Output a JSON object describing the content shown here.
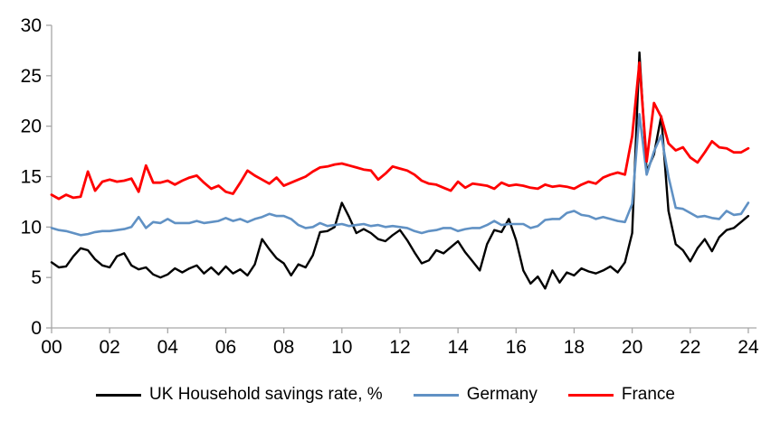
{
  "chart_data": {
    "type": "line",
    "title": "",
    "frequency": "quarterly",
    "x_start_year": 2000,
    "x_step_years": 0.25,
    "x_axis": {
      "min_year": 2000,
      "max_year": 2024,
      "ticks": [
        {
          "year": 2000,
          "label": "00"
        },
        {
          "year": 2002,
          "label": "02"
        },
        {
          "year": 2004,
          "label": "04"
        },
        {
          "year": 2006,
          "label": "06"
        },
        {
          "year": 2008,
          "label": "08"
        },
        {
          "year": 2010,
          "label": "10"
        },
        {
          "year": 2012,
          "label": "12"
        },
        {
          "year": 2014,
          "label": "14"
        },
        {
          "year": 2016,
          "label": "16"
        },
        {
          "year": 2018,
          "label": "18"
        },
        {
          "year": 2020,
          "label": "20"
        },
        {
          "year": 2022,
          "label": "22"
        },
        {
          "year": 2024,
          "label": "24"
        }
      ]
    },
    "y_axis": {
      "min": 0,
      "max": 30,
      "ticks": [
        0,
        5,
        10,
        15,
        20,
        25,
        30
      ]
    },
    "grid": "off",
    "legend_position": "bottom",
    "colors": {
      "axis": "#A6A6A6",
      "labels": "#000000",
      "background": "#FFFFFF"
    },
    "series": [
      {
        "id": "uk",
        "name": "UK Household savings rate, %",
        "color": "#000000",
        "values": [
          6.5,
          6.0,
          6.1,
          7.1,
          7.9,
          7.7,
          6.8,
          6.2,
          6.0,
          7.1,
          7.4,
          6.2,
          5.8,
          6.0,
          5.3,
          5.0,
          5.3,
          5.9,
          5.5,
          5.9,
          6.2,
          5.4,
          6.0,
          5.3,
          6.1,
          5.4,
          5.8,
          5.2,
          6.3,
          8.8,
          7.8,
          6.9,
          6.4,
          5.2,
          6.3,
          6.0,
          7.2,
          9.5,
          9.6,
          10.0,
          12.4,
          11.0,
          9.4,
          9.8,
          9.4,
          8.8,
          8.6,
          9.2,
          9.7,
          8.7,
          7.5,
          6.4,
          6.7,
          7.7,
          7.4,
          8.0,
          8.6,
          7.5,
          6.6,
          5.7,
          8.3,
          9.7,
          9.5,
          10.8,
          8.7,
          5.7,
          4.4,
          5.1,
          3.9,
          5.7,
          4.5,
          5.5,
          5.2,
          5.9,
          5.6,
          5.4,
          5.7,
          6.1,
          5.5,
          6.5,
          9.4,
          27.3,
          15.5,
          17.2,
          21.0,
          11.6,
          8.3,
          7.7,
          6.6,
          7.9,
          8.8,
          7.6,
          9.0,
          9.7,
          9.9,
          10.5,
          11.1
        ]
      },
      {
        "id": "germany",
        "name": "Germany",
        "color": "#6091C4",
        "values": [
          9.9,
          9.7,
          9.6,
          9.4,
          9.2,
          9.3,
          9.5,
          9.6,
          9.6,
          9.7,
          9.8,
          10.0,
          11.0,
          9.9,
          10.5,
          10.4,
          10.8,
          10.4,
          10.4,
          10.4,
          10.6,
          10.4,
          10.5,
          10.6,
          10.9,
          10.6,
          10.8,
          10.5,
          10.8,
          11.0,
          11.3,
          11.1,
          11.1,
          10.8,
          10.2,
          9.9,
          10.0,
          10.4,
          10.1,
          10.2,
          10.3,
          10.1,
          10.2,
          10.3,
          10.1,
          10.2,
          10.0,
          10.1,
          10.0,
          9.9,
          9.6,
          9.4,
          9.6,
          9.7,
          9.9,
          9.9,
          9.6,
          9.8,
          9.9,
          9.9,
          10.2,
          10.6,
          10.2,
          10.3,
          10.3,
          10.3,
          9.9,
          10.1,
          10.7,
          10.8,
          10.8,
          11.4,
          11.6,
          11.2,
          11.1,
          10.8,
          11.0,
          10.8,
          10.6,
          10.5,
          12.3,
          21.2,
          15.2,
          17.5,
          19.1,
          15.0,
          11.9,
          11.8,
          11.4,
          11.0,
          11.1,
          10.9,
          10.8,
          11.6,
          11.2,
          11.3,
          12.4
        ]
      },
      {
        "id": "france",
        "name": "France",
        "color": "#FF0000",
        "values": [
          13.2,
          12.8,
          13.2,
          12.9,
          13.0,
          15.5,
          13.6,
          14.5,
          14.7,
          14.5,
          14.6,
          14.8,
          13.5,
          16.1,
          14.4,
          14.4,
          14.6,
          14.2,
          14.6,
          14.9,
          15.1,
          14.4,
          13.8,
          14.1,
          13.5,
          13.3,
          14.4,
          15.6,
          15.1,
          14.7,
          14.3,
          14.9,
          14.1,
          14.4,
          14.7,
          15.0,
          15.5,
          15.9,
          16.0,
          16.2,
          16.3,
          16.1,
          15.9,
          15.7,
          15.6,
          14.7,
          15.3,
          16.0,
          15.8,
          15.6,
          15.2,
          14.6,
          14.3,
          14.2,
          13.9,
          13.6,
          14.5,
          13.9,
          14.3,
          14.2,
          14.1,
          13.8,
          14.4,
          14.1,
          14.2,
          14.1,
          13.9,
          13.8,
          14.2,
          14.0,
          14.1,
          14.0,
          13.8,
          14.2,
          14.5,
          14.3,
          14.9,
          15.2,
          15.4,
          15.2,
          19.0,
          26.3,
          16.5,
          22.3,
          20.9,
          18.3,
          17.6,
          17.9,
          16.9,
          16.4,
          17.4,
          18.5,
          17.9,
          17.8,
          17.4,
          17.4,
          17.8
        ]
      }
    ]
  }
}
